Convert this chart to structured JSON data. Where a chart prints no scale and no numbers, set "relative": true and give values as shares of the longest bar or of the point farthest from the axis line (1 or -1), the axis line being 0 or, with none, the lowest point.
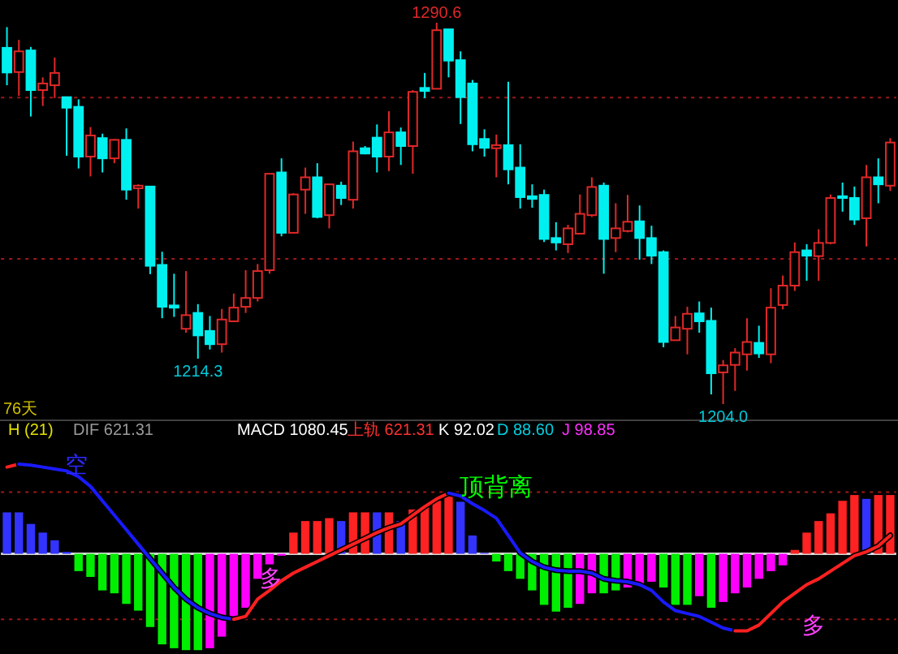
{
  "chart_data": [
    {
      "type": "candlestick",
      "categories": [
        null,
        null,
        null,
        null,
        null,
        null,
        null,
        null,
        null,
        null,
        null,
        null,
        null,
        null,
        null,
        null,
        null,
        null,
        null,
        null,
        null,
        null,
        null,
        null,
        null,
        null,
        null,
        null,
        null,
        null,
        null,
        null,
        null,
        null,
        null,
        null,
        null,
        null,
        null,
        null,
        null,
        null,
        null,
        null,
        null,
        null,
        null,
        null,
        null,
        null,
        null,
        null,
        null,
        null,
        null,
        null,
        null,
        null,
        null,
        null,
        null,
        null,
        null,
        null,
        null,
        null,
        null,
        null,
        null,
        null,
        null,
        null,
        null,
        null,
        null
      ],
      "ohlc": [
        [
          1284.9,
          1289.6,
          1276.4,
          1279.3
        ],
        [
          1279.4,
          1286.7,
          1274.0,
          1284.1
        ],
        [
          1284.3,
          1285.1,
          1269.3,
          1275.3
        ],
        [
          1275.3,
          1278.2,
          1271.7,
          1276.8
        ],
        [
          1276.4,
          1282.7,
          1273.5,
          1279.2
        ],
        [
          1273.7,
          1273.7,
          1260.4,
          1271.3
        ],
        [
          1271.5,
          1273.2,
          1257.5,
          1260.2
        ],
        [
          1260.2,
          1266.9,
          1255.7,
          1265.0
        ],
        [
          1264.4,
          1265.4,
          1256.6,
          1259.8
        ],
        [
          1259.8,
          1264.2,
          1258.7,
          1264.0
        ],
        [
          1264.0,
          1266.6,
          1250.4,
          1252.7
        ],
        [
          1253.0,
          1253.9,
          1248.4,
          1253.6
        ],
        [
          1253.4,
          1253.4,
          1233.5,
          1235.4
        ],
        [
          1235.6,
          1238.6,
          1223.5,
          1226.1
        ],
        [
          1226.4,
          1233.6,
          1223.8,
          1225.9
        ],
        [
          1221.1,
          1234.2,
          1220.2,
          1224.2
        ],
        [
          1224.7,
          1226.7,
          1214.3,
          1219.6
        ],
        [
          1220.6,
          1224.0,
          1216.4,
          1217.6
        ],
        [
          1217.6,
          1225.6,
          1215.7,
          1223.2
        ],
        [
          1222.8,
          1229.1,
          1222.6,
          1225.9
        ],
        [
          1226.1,
          1234.4,
          1224.7,
          1228.1
        ],
        [
          1228.1,
          1235.8,
          1227.3,
          1234.2
        ],
        [
          1234.4,
          1256.3,
          1233.6,
          1256.3
        ],
        [
          1256.6,
          1259.8,
          1242.1,
          1242.9
        ],
        [
          1242.9,
          1251.9,
          1242.7,
          1251.6
        ],
        [
          1252.7,
          1257.7,
          1247.2,
          1255.5
        ],
        [
          1255.5,
          1258.7,
          1246.2,
          1246.5
        ],
        [
          1246.9,
          1253.9,
          1243.9,
          1253.9
        ],
        [
          1253.6,
          1254.5,
          1249.2,
          1250.8
        ],
        [
          1250.4,
          1263.6,
          1248.4,
          1261.4
        ],
        [
          1262.1,
          1262.6,
          1260.7,
          1260.9
        ],
        [
          1264.5,
          1267.5,
          1256.6,
          1260.2
        ],
        [
          1260.2,
          1270.5,
          1256.9,
          1265.7
        ],
        [
          1265.7,
          1266.8,
          1258.3,
          1262.6
        ],
        [
          1262.6,
          1275.3,
          1256.3,
          1274.9
        ],
        [
          1275.8,
          1279.2,
          1273.5,
          1275.1
        ],
        [
          1275.6,
          1290.6,
          1275.5,
          1288.9
        ],
        [
          1289.1,
          1289.1,
          1278.2,
          1282.0
        ],
        [
          1282.1,
          1284.1,
          1267.6,
          1273.7
        ],
        [
          1276.8,
          1277.6,
          1261.4,
          1263.0
        ],
        [
          1264.2,
          1266.4,
          1260.2,
          1262.2
        ],
        [
          1262.1,
          1265.2,
          1255.5,
          1262.8
        ],
        [
          1262.8,
          1277.2,
          1253.9,
          1257.3
        ],
        [
          1257.7,
          1263.0,
          1248.4,
          1251.0
        ],
        [
          1251.2,
          1253.9,
          1248.6,
          1250.6
        ],
        [
          1251.5,
          1252.7,
          1240.8,
          1241.5
        ],
        [
          1241.7,
          1245.3,
          1238.9,
          1240.7
        ],
        [
          1240.3,
          1244.7,
          1238.3,
          1243.9
        ],
        [
          1242.7,
          1251.6,
          1242.5,
          1247.2
        ],
        [
          1246.9,
          1255.5,
          1246.5,
          1253.3
        ],
        [
          1253.6,
          1254.3,
          1233.6,
          1241.5
        ],
        [
          1241.7,
          1249.6,
          1238.5,
          1243.9
        ],
        [
          1243.3,
          1251.5,
          1243.0,
          1245.4
        ],
        [
          1245.5,
          1249.1,
          1236.8,
          1241.7
        ],
        [
          1241.7,
          1244.5,
          1235.8,
          1237.7
        ],
        [
          1238.5,
          1238.9,
          1216.9,
          1218.1
        ],
        [
          1218.5,
          1224.0,
          1218.5,
          1221.4
        ],
        [
          1221.1,
          1226.1,
          1215.3,
          1224.5
        ],
        [
          1224.6,
          1227.3,
          1220.2,
          1222.8
        ],
        [
          1222.9,
          1225.9,
          1206.2,
          1211.0
        ],
        [
          1211.2,
          1214.0,
          1204.0,
          1212.8
        ],
        [
          1212.9,
          1216.7,
          1207.0,
          1215.7
        ],
        [
          1215.3,
          1223.5,
          1211.6,
          1218.1
        ],
        [
          1217.9,
          1221.8,
          1214.5,
          1215.5
        ],
        [
          1215.3,
          1230.3,
          1213.3,
          1225.9
        ],
        [
          1226.5,
          1233.2,
          1225.5,
          1230.9
        ],
        [
          1230.9,
          1240.7,
          1229.7,
          1238.5
        ],
        [
          1238.9,
          1240.3,
          1232.0,
          1237.7
        ],
        [
          1237.6,
          1243.7,
          1232.0,
          1240.6
        ],
        [
          1240.6,
          1251.6,
          1240.3,
          1250.8
        ],
        [
          1251.2,
          1254.3,
          1247.7,
          1250.8
        ],
        [
          1250.8,
          1253.4,
          1244.7,
          1245.9
        ],
        [
          1246.2,
          1258.3,
          1239.8,
          1255.5
        ],
        [
          1255.5,
          1259.8,
          1249.6,
          1253.9
        ],
        [
          1253.6,
          1264.4,
          1252.4,
          1263.4
        ]
      ],
      "ref_lines": [
        {
          "axis": "y",
          "value": 1273.6,
          "color": "#a01818",
          "line_style": "dotted"
        },
        {
          "axis": "y",
          "value": 1237.0,
          "color": "#a01818",
          "line_style": "dotted"
        }
      ],
      "annotations": [
        {
          "text": "1290.6",
          "y": 1290.6
        },
        {
          "text": "1214.3",
          "y": 1214.3
        },
        {
          "text": "1204.0",
          "y": 1204.0
        },
        "76天"
      ]
    },
    {
      "type": "bar",
      "relative": true,
      "categories": [
        null,
        null,
        null,
        null,
        null,
        null,
        null,
        null,
        null,
        null,
        null,
        null,
        null,
        null,
        null,
        null,
        null,
        null,
        null,
        null,
        null,
        null,
        null,
        null,
        null,
        null,
        null,
        null,
        null,
        null,
        null,
        null,
        null,
        null,
        null,
        null,
        null,
        null,
        null,
        null,
        null,
        null,
        null,
        null,
        null,
        null,
        null,
        null,
        null,
        null,
        null,
        null,
        null,
        null,
        null,
        null,
        null,
        null,
        null,
        null,
        null,
        null,
        null,
        null,
        null,
        null,
        null,
        null,
        null,
        null,
        null,
        null,
        null,
        null,
        null
      ],
      "series": [
        {
          "type": "bar",
          "values": [
            0.43,
            0.43,
            0.31,
            0.22,
            0.14,
            0.02,
            -0.18,
            -0.24,
            -0.38,
            -0.41,
            -0.52,
            -0.59,
            -0.76,
            -0.94,
            -0.98,
            -1,
            -1,
            -0.98,
            -0.86,
            -0.68,
            -0.56,
            -0.26,
            -0.11,
            -0.02,
            0.22,
            0.34,
            0.34,
            0.37,
            0.34,
            0.43,
            0.43,
            0.43,
            0.43,
            0.34,
            0.46,
            0.49,
            0.55,
            0.61,
            0.54,
            0.19,
            0.01,
            -0.08,
            -0.18,
            -0.26,
            -0.38,
            -0.53,
            -0.6,
            -0.56,
            -0.52,
            -0.41,
            -0.41,
            -0.38,
            -0.35,
            -0.32,
            -0.29,
            -0.35,
            -0.53,
            -0.53,
            -0.44,
            -0.56,
            -0.5,
            -0.41,
            -0.35,
            -0.26,
            -0.18,
            -0.12,
            0.04,
            0.22,
            0.34,
            0.42,
            0.55,
            0.61,
            0.57,
            0.61,
            0.61
          ],
          "colors": [
            "#3333ff",
            "#3333ff",
            "#3333ff",
            "#3333ff",
            "#3333ff",
            "#3333ff",
            "#00ee00",
            "#00ee00",
            "#00ee00",
            "#00ee00",
            "#00ee00",
            "#00ee00",
            "#00ee00",
            "#00ee00",
            "#00ee00",
            "#00ee00",
            "#00ee00",
            "#ff00ff",
            "#ff00ff",
            "#ff00ff",
            "#ff00ff",
            "#ff00ff",
            "#ff00ff",
            "#ff00ff",
            "#ff2222",
            "#ff2222",
            "#ff2222",
            "#ff2222",
            "#3333ff",
            "#ff2222",
            "#ff2222",
            "#3333ff",
            "#ff2222",
            "#3333ff",
            "#ff2222",
            "#ff2222",
            "#ff2222",
            "#ff2222",
            "#3333ff",
            "#3333ff",
            "#3333ff",
            "#00ee00",
            "#00ee00",
            "#00ee00",
            "#00ee00",
            "#00ee00",
            "#00ee00",
            "#00ee00",
            "#ff00ff",
            "#ff00ff",
            "#00ee00",
            "#00ee00",
            "#ff00ff",
            "#ff00ff",
            "#ff00ff",
            "#00ee00",
            "#00ee00",
            "#00ee00",
            "#ff00ff",
            "#00ee00",
            "#ff00ff",
            "#ff00ff",
            "#ff00ff",
            "#ff00ff",
            "#ff00ff",
            "#ff00ff",
            "#ff2222",
            "#ff2222",
            "#ff2222",
            "#ff2222",
            "#ff2222",
            "#ff2222",
            "#3333ff",
            "#ff2222",
            "#ff2222"
          ]
        },
        {
          "type": "line",
          "color": "#ff2020",
          "values": [
            0.9,
            0.93,
            null,
            null,
            null,
            null,
            null,
            null,
            null,
            null,
            null,
            null,
            null,
            null,
            null,
            null,
            null,
            null,
            null,
            null,
            null,
            null,
            null,
            null,
            null,
            null,
            null,
            null,
            null,
            null,
            null,
            null,
            null,
            null,
            null,
            null,
            null,
            null,
            null,
            null,
            null,
            null,
            null,
            null,
            null,
            null,
            null,
            null,
            null,
            null,
            null,
            null,
            null,
            null,
            null,
            null,
            null,
            null,
            null,
            null,
            null,
            null,
            null,
            null,
            null,
            null,
            null,
            null,
            null,
            null,
            null,
            null,
            null,
            null,
            null
          ]
        },
        {
          "type": "line",
          "color": "#1a1aff",
          "values": [
            null,
            0.93,
            0.92,
            0.9,
            0.88,
            0.86,
            0.8,
            0.7,
            0.55,
            0.4,
            0.25,
            0.1,
            -0.05,
            -0.2,
            -0.35,
            -0.47,
            -0.56,
            -0.62,
            -0.66,
            -0.68,
            null,
            null,
            null,
            null,
            null,
            null,
            null,
            null,
            null,
            null,
            null,
            null,
            null,
            null,
            null,
            null,
            null,
            null,
            null,
            null,
            null,
            null,
            null,
            null,
            null,
            null,
            null,
            null,
            null,
            null,
            null,
            null,
            null,
            null,
            null,
            null,
            null,
            null,
            null,
            null,
            null,
            null,
            null,
            null,
            null,
            null,
            null,
            null,
            null,
            null,
            null,
            null,
            null,
            null,
            null
          ]
        },
        {
          "type": "line",
          "color": "#ff2020",
          "values": [
            null,
            null,
            null,
            null,
            null,
            null,
            null,
            null,
            null,
            null,
            null,
            null,
            null,
            null,
            null,
            null,
            null,
            null,
            null,
            -0.68,
            -0.65,
            -0.47,
            -0.38,
            -0.28,
            -0.2,
            -0.14,
            -0.08,
            -0.02,
            0.04,
            0.1,
            0.16,
            0.22,
            0.27,
            0.31,
            0.4,
            0.49,
            0.57,
            0.63,
            null,
            null,
            null,
            null,
            null,
            null,
            null,
            null,
            null,
            null,
            null,
            null,
            null,
            null,
            null,
            null,
            null,
            null,
            null,
            null,
            null,
            null,
            null,
            null,
            null,
            null,
            null,
            null,
            null,
            null,
            null,
            null,
            null,
            null,
            null,
            null,
            null
          ]
        },
        {
          "type": "line",
          "color": "#1a1aff",
          "values": [
            null,
            null,
            null,
            null,
            null,
            null,
            null,
            null,
            null,
            null,
            null,
            null,
            null,
            null,
            null,
            null,
            null,
            null,
            null,
            null,
            null,
            null,
            null,
            null,
            null,
            null,
            null,
            null,
            null,
            null,
            null,
            null,
            null,
            null,
            null,
            null,
            null,
            0.63,
            0.6,
            0.52,
            0.45,
            0.37,
            0.19,
            0.01,
            -0.08,
            -0.14,
            -0.17,
            -0.18,
            -0.18,
            -0.2,
            -0.26,
            -0.28,
            -0.29,
            -0.32,
            -0.38,
            -0.5,
            -0.59,
            -0.62,
            -0.65,
            -0.71,
            -0.77,
            -0.8,
            null,
            null,
            null,
            null,
            null,
            null,
            null,
            null,
            null,
            null,
            null,
            null,
            null
          ]
        },
        {
          "type": "line",
          "color": "#ff2020",
          "values": [
            null,
            null,
            null,
            null,
            null,
            null,
            null,
            null,
            null,
            null,
            null,
            null,
            null,
            null,
            null,
            null,
            null,
            null,
            null,
            null,
            null,
            null,
            null,
            null,
            null,
            null,
            null,
            null,
            null,
            null,
            null,
            null,
            null,
            null,
            null,
            null,
            null,
            null,
            null,
            null,
            null,
            null,
            null,
            null,
            null,
            null,
            null,
            null,
            null,
            null,
            null,
            null,
            null,
            null,
            null,
            null,
            null,
            null,
            null,
            null,
            null,
            -0.8,
            -0.8,
            -0.74,
            -0.62,
            -0.5,
            -0.41,
            -0.32,
            -0.26,
            -0.18,
            -0.1,
            -0.02,
            0.02,
            0.08,
            0.19
          ]
        }
      ],
      "ref_lines": [
        {
          "axis": "y",
          "value": 0.64,
          "color": "#a01818",
          "line_style": "dotted"
        },
        {
          "axis": "y",
          "value": -0.68,
          "color": "#a01818",
          "line_style": "dotted"
        }
      ],
      "annotations": [
        "H (21)",
        "DIF 621.31",
        "MACD 1080.45",
        "上轨 621.31",
        "K 92.02",
        "D 88.60",
        "J 98.85",
        "空",
        "多",
        "顶背离",
        "多"
      ]
    }
  ]
}
